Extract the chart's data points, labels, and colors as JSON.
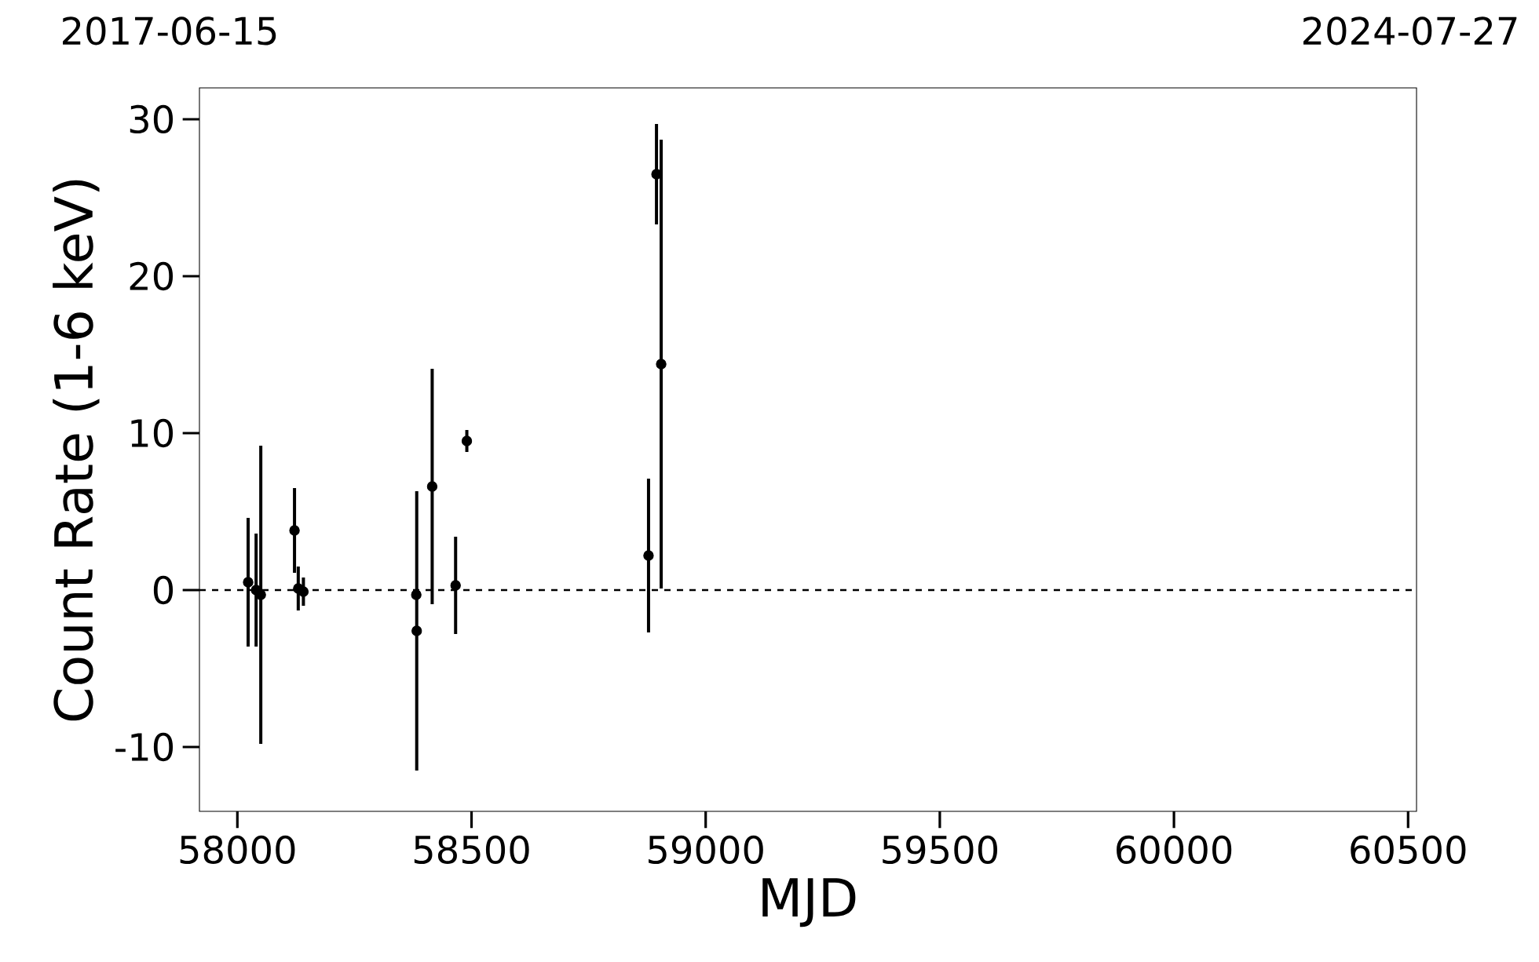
{
  "chart_data": {
    "type": "scatter",
    "xlabel": "MJD",
    "ylabel": "Count Rate (1-6 keV)",
    "x": [
      58023,
      58040,
      58050,
      58122,
      58130,
      58141,
      58382,
      58383,
      58416,
      58466,
      58490,
      58878,
      58895,
      58905
    ],
    "series": [
      {
        "color": "#000000",
        "values": [
          0.5,
          0.0,
          -0.3,
          3.8,
          0.1,
          -0.1,
          -0.3,
          -2.6,
          6.6,
          0.3,
          9.5,
          2.2,
          26.5,
          14.4
        ],
        "errors": [
          4.1,
          3.6,
          9.5,
          2.7,
          1.4,
          0.9,
          null,
          8.9,
          7.5,
          3.1,
          0.7,
          4.9,
          3.2,
          14.3
        ]
      }
    ],
    "xlim": [
      57919,
      60518
    ],
    "xticks": [
      58000,
      58500,
      59000,
      59500,
      60000,
      60500
    ],
    "ylim": [
      -14.1,
      32
    ],
    "yticks": [
      -10,
      0,
      10,
      20,
      30
    ],
    "annotations": [
      "2017-06-15",
      "2024-07-27"
    ],
    "ref_lines": [
      {
        "axis": "y",
        "value": 0,
        "line_style": "dashed",
        "color": "#000000"
      }
    ],
    "marker": "circle",
    "grid": false
  }
}
